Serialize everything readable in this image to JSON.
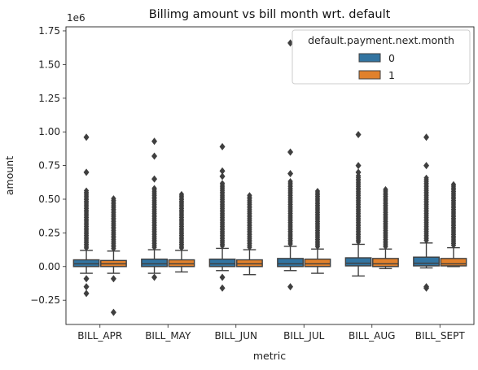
{
  "chart_data": {
    "type": "box",
    "title": "Billimg amount vs bill month wrt. default",
    "xlabel": "metric",
    "ylabel": "amount",
    "y_offset_label": "1e6",
    "ylim": [
      -0.43,
      1.78
    ],
    "y_ticks": [
      {
        "value": -0.25,
        "label": "−0.25"
      },
      {
        "value": 0.0,
        "label": "0.00"
      },
      {
        "value": 0.25,
        "label": "0.25"
      },
      {
        "value": 0.5,
        "label": "0.50"
      },
      {
        "value": 0.75,
        "label": "0.75"
      },
      {
        "value": 1.0,
        "label": "1.00"
      },
      {
        "value": 1.25,
        "label": "1.25"
      },
      {
        "value": 1.5,
        "label": "1.50"
      },
      {
        "value": 1.75,
        "label": "1.75"
      }
    ],
    "categories": [
      "BILL_APR",
      "BILL_MAY",
      "BILL_JUN",
      "BILL_JUL",
      "BILL_AUG",
      "BILL_SEPT"
    ],
    "legend": {
      "title": "default.payment.next.month",
      "position": "top-right",
      "entries": [
        {
          "label": "0",
          "color": "#3274a1"
        },
        {
          "label": "1",
          "color": "#e1812c"
        }
      ]
    },
    "series": [
      {
        "name": "0",
        "color": "#3274a1",
        "boxes": [
          {
            "q1": 0.0,
            "median": 0.02,
            "q3": 0.05,
            "whisker_low": -0.05,
            "whisker_high": 0.12,
            "dense_high": 0.57,
            "outliers": [
              0.96,
              0.7,
              -0.09,
              -0.15,
              -0.2
            ]
          },
          {
            "q1": 0.0,
            "median": 0.02,
            "q3": 0.055,
            "whisker_low": -0.05,
            "whisker_high": 0.125,
            "dense_high": 0.59,
            "outliers": [
              0.93,
              0.82,
              0.65,
              -0.08
            ]
          },
          {
            "q1": 0.0,
            "median": 0.02,
            "q3": 0.055,
            "whisker_low": -0.03,
            "whisker_high": 0.135,
            "dense_high": 0.63,
            "outliers": [
              0.89,
              0.71,
              0.67,
              -0.08,
              -0.16
            ]
          },
          {
            "q1": 0.0,
            "median": 0.02,
            "q3": 0.06,
            "whisker_low": -0.03,
            "whisker_high": 0.15,
            "dense_high": 0.64,
            "outliers": [
              1.66,
              0.85,
              0.69,
              -0.15
            ]
          },
          {
            "q1": 0.005,
            "median": 0.025,
            "q3": 0.065,
            "whisker_low": -0.07,
            "whisker_high": 0.165,
            "dense_high": 0.68,
            "outliers": [
              0.98,
              0.75,
              0.7
            ]
          },
          {
            "q1": 0.005,
            "median": 0.025,
            "q3": 0.07,
            "whisker_low": -0.01,
            "whisker_high": 0.175,
            "dense_high": 0.66,
            "outliers": [
              0.96,
              0.75,
              -0.15,
              -0.16
            ]
          }
        ]
      },
      {
        "name": "1",
        "color": "#e1812c",
        "boxes": [
          {
            "q1": 0.0,
            "median": 0.02,
            "q3": 0.045,
            "whisker_low": -0.05,
            "whisker_high": 0.115,
            "dense_high": 0.51,
            "outliers": [
              -0.09,
              -0.34
            ]
          },
          {
            "q1": 0.0,
            "median": 0.02,
            "q3": 0.05,
            "whisker_low": -0.04,
            "whisker_high": 0.12,
            "dense_high": 0.54,
            "outliers": []
          },
          {
            "q1": 0.0,
            "median": 0.02,
            "q3": 0.05,
            "whisker_low": -0.06,
            "whisker_high": 0.125,
            "dense_high": 0.54,
            "outliers": []
          },
          {
            "q1": 0.0,
            "median": 0.02,
            "q3": 0.055,
            "whisker_low": -0.05,
            "whisker_high": 0.13,
            "dense_high": 0.57,
            "outliers": []
          },
          {
            "q1": 0.0,
            "median": 0.02,
            "q3": 0.06,
            "whisker_low": -0.015,
            "whisker_high": 0.13,
            "dense_high": 0.58,
            "outliers": []
          },
          {
            "q1": 0.005,
            "median": 0.02,
            "q3": 0.06,
            "whisker_low": 0.0,
            "whisker_high": 0.14,
            "dense_high": 0.61,
            "outliers": []
          }
        ]
      }
    ]
  }
}
